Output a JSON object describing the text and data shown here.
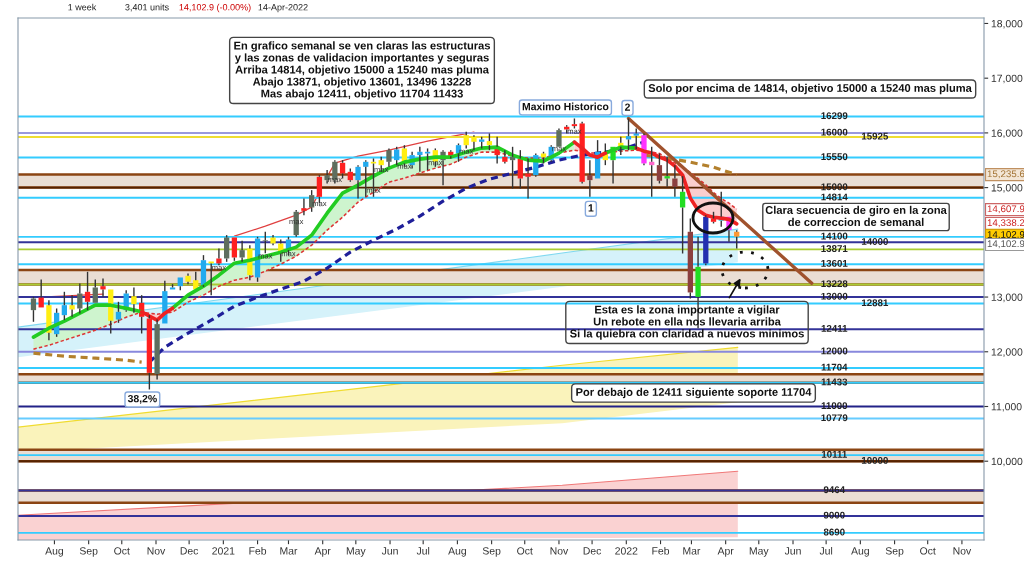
{
  "chart_data": {
    "type": "candlestick",
    "x": [
      "2020-07-13",
      "2020-07-20",
      "2020-07-27",
      "2020-08-03",
      "2020-08-10",
      "2020-08-17",
      "2020-08-24",
      "2020-08-31",
      "2020-09-07",
      "2020-09-14",
      "2020-09-21",
      "2020-09-28",
      "2020-10-05",
      "2020-10-12",
      "2020-10-19",
      "2020-10-26",
      "2020-11-02",
      "2020-11-09",
      "2020-11-16",
      "2020-11-23",
      "2020-11-30",
      "2020-12-07",
      "2020-12-14",
      "2020-12-21",
      "2020-12-28",
      "2021-01-04",
      "2021-01-11",
      "2021-01-18",
      "2021-01-25",
      "2021-02-01",
      "2021-02-08",
      "2021-02-15",
      "2021-02-22",
      "2021-03-01",
      "2021-03-08",
      "2021-03-15",
      "2021-03-22",
      "2021-03-29",
      "2021-04-05",
      "2021-04-12",
      "2021-04-19",
      "2021-04-26",
      "2021-05-03",
      "2021-05-10",
      "2021-05-17",
      "2021-05-24",
      "2021-05-31",
      "2021-06-07",
      "2021-06-14",
      "2021-06-21",
      "2021-06-28",
      "2021-07-05",
      "2021-07-12",
      "2021-07-19",
      "2021-07-26",
      "2021-08-02",
      "2021-08-09",
      "2021-08-16",
      "2021-08-23",
      "2021-08-30",
      "2021-09-06",
      "2021-09-13",
      "2021-09-20",
      "2021-09-27",
      "2021-10-04",
      "2021-10-11",
      "2021-10-18",
      "2021-10-25",
      "2021-11-01",
      "2021-11-08",
      "2021-11-15",
      "2021-11-22",
      "2021-11-29",
      "2021-12-06",
      "2021-12-13",
      "2021-12-20",
      "2021-12-27",
      "2022-01-03",
      "2022-01-10",
      "2022-01-17",
      "2022-01-24",
      "2022-01-31",
      "2022-02-07",
      "2022-02-14",
      "2022-02-21",
      "2022-02-28",
      "2022-03-07",
      "2022-03-14",
      "2022-03-21",
      "2022-03-28",
      "2022-04-04",
      "2022-04-11"
    ],
    "ohlc": [
      [
        12761,
        13004,
        12548,
        12974
      ],
      [
        12992,
        13321,
        12810,
        12810
      ],
      [
        12852,
        12943,
        12212,
        12346
      ],
      [
        12322,
        12791,
        12273,
        12712
      ],
      [
        12669,
        13096,
        12578,
        12852
      ],
      [
        12852,
        13035,
        12639,
        12773
      ],
      [
        12791,
        13248,
        12700,
        13065
      ],
      [
        13096,
        13461,
        12761,
        12913
      ],
      [
        12895,
        13321,
        12895,
        13175
      ],
      [
        13199,
        13339,
        13004,
        13139
      ],
      [
        13139,
        13139,
        12334,
        12566
      ],
      [
        12590,
        12913,
        12529,
        12730
      ],
      [
        12761,
        13126,
        12730,
        13065
      ],
      [
        13017,
        13175,
        12712,
        12870
      ],
      [
        12895,
        13035,
        12334,
        12639
      ],
      [
        12608,
        12669,
        11311,
        11615
      ],
      [
        11591,
        12590,
        11493,
        12505
      ],
      [
        12517,
        13297,
        12517,
        13108
      ],
      [
        13139,
        13236,
        13139,
        13175
      ],
      [
        13199,
        13358,
        13126,
        13358
      ],
      [
        13388,
        13431,
        13236,
        13279
      ],
      [
        13309,
        13461,
        13139,
        13139
      ],
      [
        13218,
        13766,
        13187,
        13674
      ],
      [
        13650,
        13650,
        13035,
        13614
      ],
      [
        13705,
        13888,
        13583,
        13614
      ],
      [
        13705,
        14132,
        13644,
        14089
      ],
      [
        14089,
        14089,
        13662,
        13723
      ],
      [
        13723,
        14028,
        13644,
        13857
      ],
      [
        13888,
        13949,
        13309,
        13400
      ],
      [
        13358,
        14101,
        13279,
        14070
      ],
      [
        14028,
        14193,
        13800,
        14040
      ],
      [
        14089,
        14132,
        13949,
        13979
      ],
      [
        13979,
        14052,
        13644,
        13796
      ],
      [
        13857,
        14101,
        13766,
        14052
      ],
      [
        14132,
        14589,
        14101,
        14558
      ],
      [
        14625,
        14802,
        14497,
        14576
      ],
      [
        14637,
        14954,
        14558,
        14863
      ],
      [
        15198,
        15228,
        14710,
        14832
      ],
      [
        15137,
        15320,
        15076,
        15228
      ],
      [
        15137,
        15502,
        15076,
        15472
      ],
      [
        15454,
        15502,
        15167,
        15258
      ],
      [
        15289,
        15350,
        15106,
        15137
      ],
      [
        15137,
        15411,
        14802,
        15380
      ],
      [
        15380,
        15502,
        14832,
        15472
      ],
      [
        15472,
        15533,
        14832,
        15441
      ],
      [
        15502,
        15563,
        15289,
        15411
      ],
      [
        15472,
        15716,
        15380,
        15685
      ],
      [
        15502,
        15746,
        15411,
        15697
      ],
      [
        15716,
        15776,
        15380,
        15441
      ],
      [
        15411,
        15655,
        15350,
        15594
      ],
      [
        15594,
        15746,
        15289,
        15655
      ],
      [
        15624,
        15716,
        15320,
        15655
      ],
      [
        15685,
        15716,
        15380,
        15472
      ],
      [
        15502,
        15685,
        15045,
        15655
      ],
      [
        15655,
        15685,
        15533,
        15575
      ],
      [
        15624,
        15807,
        15472,
        15776
      ],
      [
        15959,
        16020,
        15716,
        15776
      ],
      [
        15929,
        15959,
        15685,
        15837
      ],
      [
        15837,
        15929,
        15716,
        15880
      ],
      [
        15850,
        15990,
        15685,
        15776
      ],
      [
        15746,
        15929,
        15441,
        15594
      ],
      [
        15563,
        15685,
        15441,
        15472
      ],
      [
        15502,
        15746,
        14984,
        15563
      ],
      [
        15533,
        15685,
        14984,
        15167
      ],
      [
        15258,
        15533,
        14802,
        15198
      ],
      [
        15228,
        15624,
        15198,
        15594
      ],
      [
        15624,
        15655,
        15441,
        15551
      ],
      [
        15502,
        15776,
        15472,
        15746
      ],
      [
        15746,
        16081,
        15746,
        16051
      ],
      [
        16112,
        16142,
        15990,
        16063
      ],
      [
        16160,
        16264,
        16081,
        16124
      ],
      [
        16173,
        16203,
        15076,
        15106
      ],
      [
        15228,
        15502,
        14832,
        15137
      ],
      [
        15167,
        15868,
        15167,
        15655
      ],
      [
        15655,
        15807,
        15411,
        15502
      ],
      [
        15502,
        15746,
        15076,
        15746
      ],
      [
        15819,
        15929,
        15594,
        15746
      ],
      [
        15880,
        16264,
        15685,
        15941
      ],
      [
        15950,
        16081,
        15700,
        15990
      ],
      [
        15959,
        15990,
        15411,
        15442
      ],
      [
        15472,
        15746,
        14832,
        15411
      ],
      [
        15411,
        15624,
        15076,
        15125
      ],
      [
        15167,
        15563,
        15015,
        15210
      ],
      [
        15167,
        15411,
        14832,
        15015
      ],
      [
        14637,
        15210,
        13796,
        14924
      ],
      [
        14193,
        14436,
        12974,
        13084
      ],
      [
        13003,
        14101,
        12431,
        13552
      ],
      [
        13614,
        14497,
        13583,
        14467
      ],
      [
        14436,
        14558,
        14345,
        14375
      ],
      [
        14394,
        14924,
        14284,
        14467
      ],
      [
        14467,
        14467,
        14010,
        14223
      ],
      [
        14193,
        14223,
        13888,
        14103
      ]
    ],
    "colors": [
      "#5e6e5e",
      "#ff2020",
      "#ffee11",
      "#22aaee",
      "#22aaee",
      "#ffee11",
      "#5e6e5e",
      "#ff2020",
      "#5e6e5e",
      "#ff2020",
      "#ffee11",
      "#22aaee",
      "#22aaee",
      "#ffee11",
      "#ff2020",
      "#ff2020",
      "#5e6e5e",
      "#22aaee",
      "#22aaee",
      "#22aaee",
      "#ffee11",
      "#ffee11",
      "#22aaee",
      "#ffee11",
      "#ff2020",
      "#5e6e5e",
      "#ff2020",
      "#5e6e5e",
      "#ffee11",
      "#22aaee",
      "#5e6e5e",
      "#ffee11",
      "#ffee11",
      "#22aaee",
      "#5e6e5e",
      "#ff2020",
      "#5e6e5e",
      "#ff2020",
      "#5e6e5e",
      "#5e6e5e",
      "#ff2020",
      "#ff2020",
      "#22aaee",
      "#22aaee",
      "#ffee11",
      "#ffee11",
      "#5e6e5e",
      "#22aaee",
      "#ffee11",
      "#22aaee",
      "#22aaee",
      "#22aaee",
      "#ffee11",
      "#5e6e5e",
      "#ff2020",
      "#22aaee",
      "#ffee11",
      "#ffee11",
      "#22aaee",
      "#ffee11",
      "#ff2020",
      "#ff2020",
      "#5e6e5e",
      "#ff2020",
      "#ff2020",
      "#22aaee",
      "#ffee11",
      "#22aaee",
      "#5e6e5e",
      "#ff2020",
      "#ff2020",
      "#ff2020",
      "#8b3f3f",
      "#22aaee",
      "#ffee11",
      "#22dd22",
      "#ffee11",
      "#22aaee",
      "#22aaee",
      "#ff33ff",
      "#ff66cc",
      "#8b3f3f",
      "#22dd22",
      "#8b3f3f",
      "#22dd22",
      "#8b3f3f",
      "#22dd22",
      "#2230b0",
      "#ff2020",
      "#33ccee",
      "#ff33ff",
      "#ff9933"
    ],
    "xlim": [
      "2020-06-29",
      "2022-11-21"
    ],
    "ylim": [
      8560,
      18100
    ],
    "xticks": [
      {
        "value": "2020-08-01",
        "label": "Aug"
      },
      {
        "value": "2020-09-01",
        "label": "Sep"
      },
      {
        "value": "2020-10-01",
        "label": "Oct"
      },
      {
        "value": "2020-11-01",
        "label": "Nov"
      },
      {
        "value": "2020-12-01",
        "label": "Dec"
      },
      {
        "value": "2021-01-01",
        "label": "2021"
      },
      {
        "value": "2021-02-01",
        "label": "Feb"
      },
      {
        "value": "2021-03-01",
        "label": "Mar"
      },
      {
        "value": "2021-04-01",
        "label": "Apr"
      },
      {
        "value": "2021-05-01",
        "label": "May"
      },
      {
        "value": "2021-06-01",
        "label": "Jun"
      },
      {
        "value": "2021-07-01",
        "label": "Jul"
      },
      {
        "value": "2021-08-01",
        "label": "Aug"
      },
      {
        "value": "2021-09-01",
        "label": "Sep"
      },
      {
        "value": "2021-10-01",
        "label": "Oct"
      },
      {
        "value": "2021-11-01",
        "label": "Nov"
      },
      {
        "value": "2021-12-01",
        "label": "Dec"
      },
      {
        "value": "2022-01-01",
        "label": "2022"
      },
      {
        "value": "2022-02-01",
        "label": "Feb"
      },
      {
        "value": "2022-03-01",
        "label": "Mar"
      },
      {
        "value": "2022-04-01",
        "label": "Apr"
      },
      {
        "value": "2022-05-01",
        "label": "May"
      },
      {
        "value": "2022-06-01",
        "label": "Jun"
      },
      {
        "value": "2022-07-01",
        "label": "Jul"
      },
      {
        "value": "2022-08-01",
        "label": "Aug"
      },
      {
        "value": "2022-09-01",
        "label": "Sep"
      },
      {
        "value": "2022-10-01",
        "label": "Oct"
      },
      {
        "value": "2022-11-01",
        "label": "Nov"
      }
    ],
    "yticks": [
      {
        "value": 10000,
        "label": "10,000"
      },
      {
        "value": 11000,
        "label": "11,000"
      },
      {
        "value": 12000,
        "label": "12,000"
      },
      {
        "value": 13000,
        "label": "13,000"
      },
      {
        "value": 15000,
        "label": "15,000"
      },
      {
        "value": 16000,
        "label": "16,000"
      },
      {
        "value": 17000,
        "label": "17,000"
      },
      {
        "value": 18000,
        "label": "18,000"
      }
    ],
    "series": [
      {
        "type": "line",
        "color": "#7fd8f0",
        "line_style": "solid",
        "x": [
          "2020-06-29",
          "2021-11-04",
          "2022-04-12"
        ],
        "values": [
          12450,
          13804,
          14241
        ],
        "lower": [
          11901,
          13190,
          13638
        ],
        "upper": [
          12450,
          13804,
          14241
        ]
      },
      {
        "type": "line",
        "color": "#f0dc30",
        "line_style": "solid",
        "x": [
          "2020-06-29",
          "2021-11-04",
          "2022-04-12"
        ],
        "values": [
          10622,
          11754,
          12080
        ],
        "lower": [
          10165,
          10695,
          11078
        ],
        "upper": [
          10622,
          11754,
          12080
        ]
      },
      {
        "type": "line",
        "color": "#f07878",
        "line_style": "solid",
        "x": [
          "2020-06-29",
          "2021-11-04",
          "2022-04-12"
        ],
        "values": [
          9013,
          9561,
          9817
        ],
        "lower": [
          8560,
          8590,
          8611
        ],
        "upper": [
          9013,
          9561,
          9817
        ]
      },
      {
        "type": "line",
        "color": "#22cc22",
        "line_style": "solid",
        "x": [
          "2020-07-13",
          "2020-07-27",
          "2020-08-10",
          "2020-08-24",
          "2020-09-07",
          "2020-09-21",
          "2020-10-05",
          "2020-10-19",
          "2020-11-02",
          "2020-11-16",
          "2020-11-30",
          "2020-12-14",
          "2020-12-28",
          "2021-01-11",
          "2021-01-25",
          "2021-02-08",
          "2021-02-22",
          "2021-03-08",
          "2021-03-22",
          "2021-04-05",
          "2021-04-19",
          "2021-05-03",
          "2021-05-17",
          "2021-05-31",
          "2021-06-14",
          "2021-06-28",
          "2021-07-12",
          "2021-07-26",
          "2021-08-09",
          "2021-08-23",
          "2021-09-06",
          "2021-09-20",
          "2021-10-04",
          "2021-10-18",
          "2021-11-01",
          "2021-11-15",
          "2021-11-29",
          "2021-12-13",
          "2021-12-27",
          "2022-01-10"
        ],
        "values": [
          12267,
          12431,
          12559,
          12705,
          12852,
          12852,
          12797,
          12731,
          null,
          12797,
          13035,
          13199,
          13400,
          13619,
          13674,
          13747,
          13820,
          13912,
          14131,
          14533,
          14899,
          15045,
          15210,
          15356,
          15466,
          15521,
          15557,
          15557,
          15649,
          15722,
          15740,
          15594,
          15502,
          15484,
          15631,
          15832,
          null,
          15631,
          15740,
          15722
        ],
        "lower": [
          12047,
          12120,
          12212,
          12303,
          12395,
          12504,
          12632,
          12724,
          null,
          12724,
          12907,
          13035,
          13199,
          13309,
          13364,
          13473,
          13601,
          13747,
          13948,
          14223,
          14460,
          14735,
          14917,
          15100,
          15173,
          15265,
          15356,
          15429,
          15557,
          15649,
          15649,
          15575,
          15539,
          15539,
          15631,
          15685,
          null,
          15631,
          15667,
          15685
        ],
        "upper": [
          12267,
          12431,
          12559,
          12705,
          12852,
          12852,
          12797,
          12731,
          null,
          12797,
          13035,
          13199,
          13400,
          13619,
          13674,
          13747,
          13820,
          13912,
          14131,
          14533,
          14899,
          15045,
          15210,
          15356,
          15466,
          15521,
          15557,
          15557,
          15649,
          15722,
          15740,
          15594,
          15502,
          15484,
          15631,
          15832,
          null,
          15631,
          15740,
          15722
        ]
      },
      {
        "type": "line",
        "color": "#ee2222",
        "line_style": "solid",
        "x": [
          "2020-10-19",
          "2020-10-26",
          "2020-11-02",
          "2020-11-09",
          "2020-11-16",
          "2020-11-23",
          "2021-11-15",
          "2021-11-22",
          "2021-11-29",
          "2021-12-06",
          "2021-12-13",
          "2021-12-20",
          "2022-01-10",
          "2022-01-17",
          "2022-01-24",
          "2022-01-31",
          "2022-02-07",
          "2022-02-14",
          "2022-02-21",
          "2022-02-28",
          "2022-03-07",
          "2022-03-14",
          "2022-03-21",
          "2022-03-28",
          "2022-04-04",
          "2022-04-11"
        ],
        "values": [
          12731,
          12651,
          12577,
          12705,
          12797,
          null,
          15832,
          15722,
          15594,
          15557,
          15631,
          null,
          15722,
          15667,
          15631,
          15557,
          15502,
          15393,
          15228,
          14808,
          14588,
          14497,
          14460,
          14442,
          14420,
          14338
        ],
        "lower": [
          12731,
          12651,
          12577,
          12705,
          12797,
          null,
          15832,
          15722,
          15594,
          15557,
          15631,
          null,
          15722,
          15667,
          15631,
          15557,
          15502,
          15393,
          15228,
          14808,
          14588,
          14497,
          14460,
          14442,
          14420,
          14338
        ],
        "upper": [
          12724,
          12705,
          12687,
          12705,
          12724,
          null,
          15685,
          15660,
          15631,
          15631,
          15631,
          null,
          15685,
          15667,
          15649,
          15625,
          15534,
          15455,
          15374,
          15276,
          15164,
          15051,
          14910,
          14802,
          14716,
          14608
        ]
      },
      {
        "type": "line",
        "color": "#dd3333",
        "line_style": "dashed",
        "x": [
          "2020-07-13",
          "2020-07-27",
          "2020-08-10",
          "2020-08-24",
          "2020-09-07",
          "2020-09-21",
          "2020-10-05",
          "2020-10-19",
          "2020-11-02",
          "2020-11-16",
          "2020-11-30",
          "2020-12-14",
          "2020-12-28",
          "2021-01-11",
          "2021-01-25",
          "2021-02-08",
          "2021-02-22",
          "2021-03-08",
          "2021-03-22",
          "2021-04-05",
          "2021-04-19",
          "2021-05-03",
          "2021-05-17",
          "2021-05-31",
          "2021-06-14",
          "2021-06-28",
          "2021-07-12",
          "2021-07-26",
          "2021-08-09",
          "2021-08-23",
          "2021-09-06",
          "2021-09-20",
          "2021-10-04",
          "2021-10-18",
          "2021-11-01",
          "2021-11-15",
          "2021-11-29",
          "2021-12-13",
          "2021-12-27",
          "2022-01-10",
          "2022-01-17",
          "2022-01-24",
          "2022-01-31",
          "2022-02-07",
          "2022-02-14",
          "2022-02-21",
          "2022-02-28",
          "2022-03-07",
          "2022-03-14",
          "2022-03-21",
          "2022-03-28",
          "2022-04-04",
          "2022-04-11"
        ],
        "values": [
          12047,
          12120,
          12212,
          12303,
          12395,
          12504,
          12632,
          12724,
          12687,
          12724,
          12907,
          13035,
          13199,
          13309,
          13364,
          13473,
          13601,
          13747,
          13948,
          14223,
          14460,
          14735,
          14917,
          15100,
          15173,
          15265,
          15356,
          15429,
          15557,
          15649,
          15649,
          15575,
          15539,
          15539,
          15631,
          15685,
          15631,
          15631,
          15667,
          15685,
          15667,
          15649,
          15625,
          15534,
          15455,
          15374,
          15276,
          15164,
          15051,
          14910,
          14802,
          14716,
          14608
        ]
      },
      {
        "type": "line",
        "color": "#1f1f99",
        "line_style": "dashed",
        "x": [
          "2020-10-26",
          "2020-11-09",
          "2020-11-30",
          "2020-12-21",
          "2021-01-11",
          "2021-02-01",
          "2021-02-22",
          "2021-03-15",
          "2021-04-05",
          "2021-04-26",
          "2021-05-17",
          "2021-06-07",
          "2021-06-28",
          "2021-07-19",
          "2021-08-09",
          "2021-08-30",
          "2021-09-20",
          "2021-10-11",
          "2021-11-01",
          "2021-11-22",
          "2021-12-13",
          "2022-01-03",
          "2022-01-17"
        ],
        "values": [
          11810,
          12084,
          12340,
          12577,
          12833,
          12998,
          13144,
          13290,
          13528,
          13821,
          14040,
          14241,
          14479,
          14753,
          14990,
          15155,
          15265,
          15374,
          15502,
          15594,
          15649,
          15740,
          15832
        ]
      },
      {
        "type": "line",
        "color": "#b3802d",
        "line_style": "dashed",
        "x": [
          "2020-07-13",
          "2020-08-10",
          "2020-09-07",
          "2020-10-05",
          "2020-10-19",
          "2020-10-26",
          "2022-01-17",
          "2022-02-07",
          "2022-02-28",
          "2022-03-21",
          "2022-04-11"
        ],
        "values": [
          11974,
          11919,
          11883,
          11846,
          11810,
          null,
          15594,
          15539,
          15466,
          15374,
          15236
        ]
      },
      {
        "type": "line",
        "color": "#e04040",
        "line_style": "solid",
        "x": [
          "2020-07-20",
          "2020-09-14",
          "2020-09-21",
          "2021-01-11",
          "2021-02-08",
          "2021-03-08",
          "2021-03-22",
          "2021-04-05",
          "2021-04-12",
          "2021-05-03",
          "2021-05-31",
          "2021-07-05",
          "2021-08-02",
          "2021-08-16"
        ],
        "values": [
          12998,
          13053,
          null,
          14113,
          14296,
          14497,
          14643,
          15196,
          15447,
          15575,
          15685,
          15850,
          15959,
          16014
        ]
      },
      {
        "type": "line",
        "color": "#a0522d",
        "line_style": "solid",
        "x": [
          "2022-01-03",
          "2022-06-18"
        ],
        "values": [
          16264,
          13254
        ]
      }
    ],
    "ref_lines": [
      {
        "axis": "y",
        "value": 16299,
        "label": "16299",
        "color": "#33ccff"
      },
      {
        "axis": "y",
        "value": 16000,
        "label": "16000",
        "color": "#9999dd"
      },
      {
        "axis": "y",
        "value": 15925,
        "label": "15925",
        "color": "#eedd33"
      },
      {
        "axis": "y",
        "value": 15550,
        "label": "15550",
        "color": "#33ccff"
      },
      {
        "axis": "y",
        "value": 15000,
        "label": "15000",
        "color": "#552200"
      },
      {
        "axis": "y",
        "value": 14814,
        "label": "14814",
        "color": "#33ccff"
      },
      {
        "axis": "y",
        "value": 14100,
        "label": "14100",
        "color": "#33ccff"
      },
      {
        "axis": "y",
        "value": 14000,
        "label": "14000",
        "color": "#333399"
      },
      {
        "axis": "y",
        "value": 13871,
        "label": "13871",
        "color": "#aacc33"
      },
      {
        "axis": "y",
        "value": 13601,
        "label": "13601",
        "color": "#33ccff"
      },
      {
        "axis": "y",
        "value": 13228,
        "label": "13228",
        "color": "#aacc33"
      },
      {
        "axis": "y",
        "value": 13000,
        "label": "13000",
        "color": "#333399"
      },
      {
        "axis": "y",
        "value": 12881,
        "label": "12881",
        "color": "#33ccff"
      },
      {
        "axis": "y",
        "value": 12411,
        "label": "12411",
        "color": "#333399"
      },
      {
        "axis": "y",
        "value": 12000,
        "label": "12000",
        "color": "#8888dd"
      },
      {
        "axis": "y",
        "value": 11704,
        "label": "11704",
        "color": "#33ccff"
      },
      {
        "axis": "y",
        "value": 11433,
        "label": "11433",
        "color": "#33ccff"
      },
      {
        "axis": "y",
        "value": 11000,
        "label": "11000",
        "color": "#222288"
      },
      {
        "axis": "y",
        "value": 10779,
        "label": "10779",
        "color": "#66ccff"
      },
      {
        "axis": "y",
        "value": 10111,
        "label": "10111",
        "color": "#33ccff"
      },
      {
        "axis": "y",
        "value": 10000,
        "label": "10000",
        "color": "#552200"
      },
      {
        "axis": "y",
        "value": 9464,
        "label": "9464",
        "color": "#333399"
      },
      {
        "axis": "y",
        "value": 9000,
        "label": "9000",
        "color": "#333399"
      },
      {
        "axis": "y",
        "value": 8690,
        "label": "8690",
        "color": "#33ccff"
      }
    ],
    "bands": [
      {
        "axis": "y",
        "from": 15000,
        "to": 15240,
        "color": "#eaded4"
      },
      {
        "axis": "y",
        "from": 13228,
        "to": 13496,
        "color": "#eaded4"
      },
      {
        "axis": "y",
        "from": 11433,
        "to": 11590,
        "color": "#eaded4"
      },
      {
        "axis": "y",
        "from": 10000,
        "to": 10210,
        "color": "#eaded4"
      },
      {
        "axis": "y",
        "from": 9240,
        "to": 9464,
        "color": "#eaded4"
      }
    ],
    "annotations": [
      "En grafico semanal se ven claras las estructuras\ny las zonas de validacion importantes y seguras\nArriba 14814, objetivo 15000 a 15240 mas pluma\nAbajo 13871, objetivo 13601, 13496 13228\nMas abajo 12411, objetivo 11704 11433",
      "Solo por encima de 14814, objetivo 15000 a 15240 mas pluma",
      {
        "text": "Maximo Historico",
        "x": "2021-11-15",
        "y": 16264
      },
      {
        "text": "2",
        "x": "2022-01-03",
        "y": 16264
      },
      {
        "text": "1",
        "x": "2021-11-29",
        "y": 14832
      },
      {
        "text": "38,2%",
        "x": "2020-10-26",
        "y": 11311
      },
      "Clara secuencia de giro en la zona\nde correccion de semanal",
      "Esta es la zona importante a vigilar\nUn rebote en ella nos llevaria arriba\nSi la quiebra con claridad a nuevos minimos",
      "Por debajo de 12411 siguiente soporte 11704",
      "1 week",
      "3,401 units",
      "14,102.9 (-0.00%)",
      "14-Apr-2022",
      "15,235.6",
      "14,607.9",
      "14,338.2",
      "14,102.9",
      "14,102.9",
      {
        "text": "max",
        "x": "2020-12-28",
        "y": 13528
      },
      {
        "text": "max",
        "x": "2021-02-08",
        "y": 13740
      },
      {
        "text": "max",
        "x": "2021-03-01",
        "y": 13784
      },
      {
        "text": "max",
        "x": "2021-03-08",
        "y": 14369
      },
      {
        "text": "max",
        "x": "2021-03-29",
        "y": 14698
      },
      {
        "text": "max",
        "x": "2021-04-12",
        "y": 15137
      },
      {
        "text": "max",
        "x": "2021-05-17",
        "y": 14941
      },
      {
        "text": "max",
        "x": "2021-05-24",
        "y": 15320
      },
      {
        "text": "max",
        "x": "2021-06-14",
        "y": 15380
      },
      {
        "text": "max",
        "x": "2021-07-12",
        "y": 15447
      },
      {
        "text": "max",
        "x": "2021-08-09",
        "y": 15654
      },
      {
        "text": "max",
        "x": "2021-11-01",
        "y": 15703
      },
      {
        "text": "max",
        "x": "2021-11-15",
        "y": 16020
      }
    ]
  }
}
